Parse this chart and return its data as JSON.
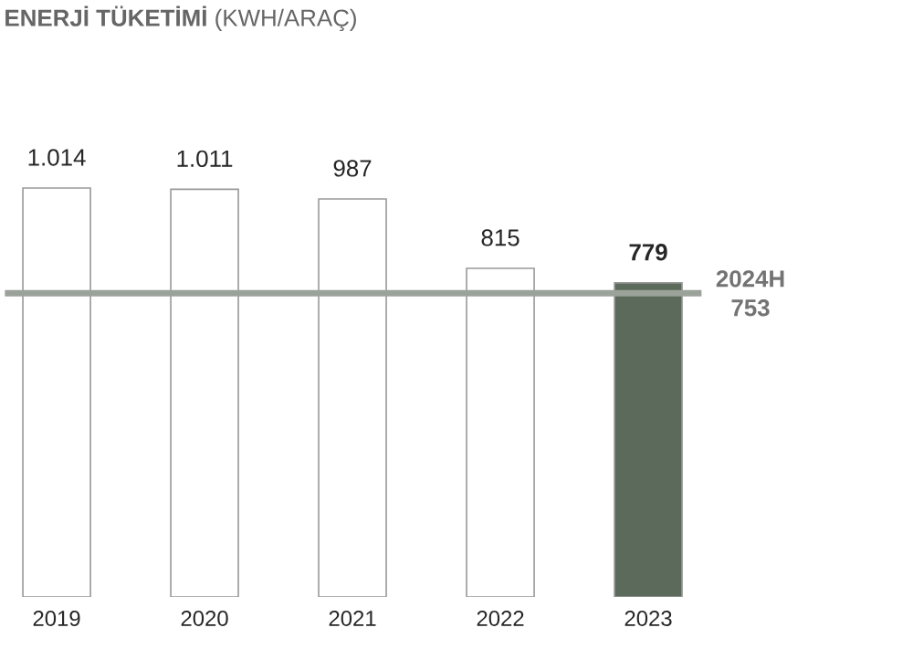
{
  "chart_data": {
    "type": "bar",
    "title": "**ENERJİ TÜKETİMİ** (KWH/ARAÇ)",
    "categories": [
      "2019",
      "2020",
      "2021",
      "2022",
      "2023"
    ],
    "values": [
      1014,
      1011,
      987,
      815,
      779
    ],
    "colors": [
      "#ffffff",
      "#ffffff",
      "#ffffff",
      "#ffffff",
      "#5b6a5a"
    ],
    "value_labels": [
      "1.014",
      "1.011",
      "987",
      "815",
      "**779**"
    ],
    "ref_lines": [
      {
        "axis": "y",
        "value": 753,
        "label": "2024H 753",
        "color": "#9aa29a"
      }
    ]
  }
}
